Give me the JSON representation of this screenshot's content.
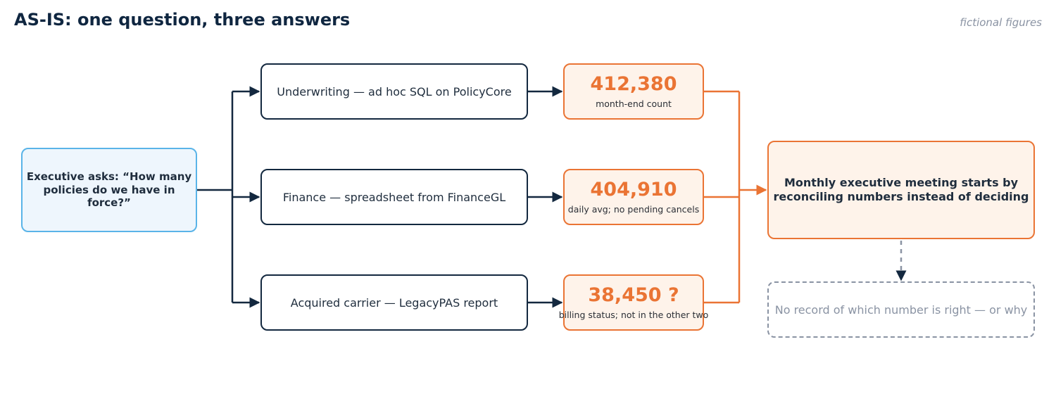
{
  "title": "AS-IS: one question, three answers",
  "note": "fictional figures",
  "question": "Executive asks: “How many policies do we have in force?”",
  "sources": [
    {
      "label": "Underwriting — ad hoc SQL on PolicyCore",
      "value": "412,380",
      "detail": "month-end count"
    },
    {
      "label": "Finance — spreadsheet from FinanceGL",
      "value": "404,910",
      "detail": "daily avg; no pending cancels"
    },
    {
      "label": "Acquired carrier — LegacyPAS report",
      "value": "38,450 ?",
      "detail": "billing status; not in the other two"
    }
  ],
  "meeting": "Monthly executive meeting starts by reconciling numbers instead of deciding",
  "no_record": "No record of which number is right — or why",
  "colors": {
    "navy": "#13283f",
    "orange": "#ea7434",
    "blue": "#5ab4e8",
    "gray": "#8a93a3"
  }
}
